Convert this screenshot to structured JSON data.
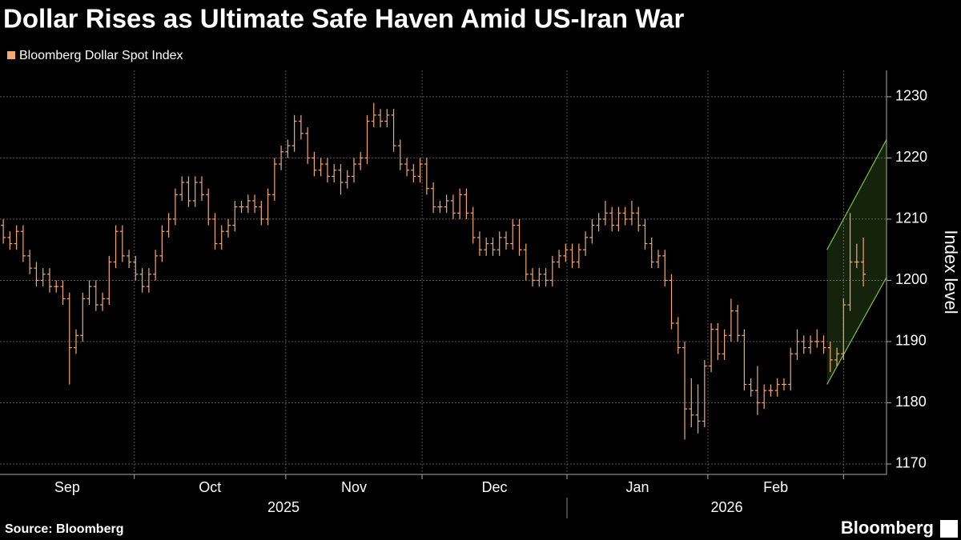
{
  "chart_data": {
    "type": "ohlc",
    "title": "Dollar Rises as Ultimate Safe Haven Amid US-Iran War",
    "y_label": "Index level",
    "series": [
      {
        "name": "Bloomberg Dollar Spot Index",
        "color": "#f4a96f",
        "open": [
          1209,
          1207,
          1206,
          1208,
          1204,
          1202,
          1200,
          1201,
          1199,
          1199,
          1197,
          1189,
          1191,
          1197,
          1199,
          1196,
          1197,
          1203,
          1208,
          1204,
          1203,
          1201,
          1199,
          1201,
          1204,
          1208,
          1210,
          1214,
          1216,
          1213,
          1216,
          1214,
          1210,
          1206,
          1208,
          1209,
          1212,
          1212,
          1213,
          1212,
          1210,
          1214,
          1219,
          1221,
          1222,
          1226,
          1224,
          1220,
          1218,
          1219,
          1217,
          1218,
          1216,
          1217,
          1219,
          1220,
          1226,
          1227,
          1226,
          1227,
          1222,
          1219,
          1218,
          1217,
          1219,
          1215,
          1212,
          1212,
          1213,
          1211,
          1214,
          1211,
          1207,
          1205,
          1206,
          1205,
          1207,
          1206,
          1209,
          1205,
          1201,
          1200,
          1201,
          1200,
          1203,
          1204,
          1205,
          1203,
          1205,
          1207,
          1209,
          1210,
          1211,
          1209,
          1211,
          1210,
          1211,
          1209,
          1206,
          1203,
          1204,
          1200,
          1193,
          1189,
          1179,
          1178,
          1177,
          1186,
          1192,
          1188,
          1191,
          1195,
          1191,
          1183,
          1182,
          1180,
          1182,
          1182,
          1183,
          1183,
          1188,
          1190,
          1189,
          1190,
          1190,
          1189,
          1187,
          1188,
          1196,
          1203,
          1203
        ],
        "high": [
          1210,
          1208,
          1209,
          1209,
          1205,
          1203,
          1202,
          1202,
          1200,
          1200,
          1198,
          1192,
          1198,
          1200,
          1200,
          1198,
          1204,
          1209,
          1209,
          1205,
          1204,
          1202,
          1202,
          1205,
          1209,
          1211,
          1215,
          1217,
          1217,
          1217,
          1217,
          1215,
          1211,
          1209,
          1210,
          1213,
          1213,
          1214,
          1214,
          1213,
          1215,
          1220,
          1222,
          1223,
          1227,
          1227,
          1225,
          1221,
          1220,
          1220,
          1219,
          1219,
          1218,
          1220,
          1221,
          1227,
          1229,
          1228,
          1228,
          1228,
          1223,
          1220,
          1219,
          1220,
          1220,
          1216,
          1213,
          1214,
          1214,
          1215,
          1215,
          1212,
          1208,
          1207,
          1207,
          1208,
          1208,
          1210,
          1210,
          1206,
          1202,
          1202,
          1202,
          1204,
          1205,
          1206,
          1206,
          1206,
          1208,
          1210,
          1211,
          1213,
          1212,
          1212,
          1212,
          1213,
          1212,
          1210,
          1207,
          1205,
          1205,
          1201,
          1194,
          1190,
          1184,
          1183,
          1187,
          1193,
          1193,
          1192,
          1197,
          1196,
          1192,
          1184,
          1186,
          1183,
          1183,
          1184,
          1184,
          1189,
          1192,
          1191,
          1191,
          1192,
          1191,
          1190,
          1189,
          1197,
          1211,
          1206,
          1207
        ],
        "low": [
          1206,
          1205,
          1205,
          1203,
          1201,
          1199,
          1199,
          1198,
          1198,
          1196,
          1183,
          1188,
          1190,
          1196,
          1195,
          1195,
          1196,
          1202,
          1203,
          1202,
          1200,
          1198,
          1198,
          1200,
          1203,
          1207,
          1209,
          1213,
          1212,
          1212,
          1213,
          1209,
          1205,
          1205,
          1207,
          1208,
          1211,
          1211,
          1211,
          1209,
          1209,
          1213,
          1218,
          1220,
          1221,
          1223,
          1219,
          1217,
          1217,
          1216,
          1216,
          1214,
          1215,
          1216,
          1218,
          1219,
          1225,
          1225,
          1225,
          1221,
          1218,
          1217,
          1216,
          1216,
          1214,
          1211,
          1211,
          1211,
          1210,
          1210,
          1210,
          1206,
          1204,
          1204,
          1204,
          1204,
          1205,
          1205,
          1204,
          1200,
          1199,
          1199,
          1199,
          1199,
          1202,
          1203,
          1202,
          1202,
          1204,
          1206,
          1208,
          1209,
          1208,
          1208,
          1209,
          1209,
          1208,
          1205,
          1202,
          1202,
          1199,
          1192,
          1188,
          1174,
          1176,
          1175,
          1176,
          1185,
          1187,
          1187,
          1190,
          1190,
          1182,
          1181,
          1178,
          1179,
          1181,
          1181,
          1182,
          1182,
          1187,
          1188,
          1188,
          1189,
          1188,
          1185,
          1186,
          1187,
          1195,
          1202,
          1199
        ],
        "close": [
          1207,
          1206,
          1208,
          1204,
          1202,
          1200,
          1201,
          1199,
          1199,
          1197,
          1189,
          1191,
          1197,
          1199,
          1196,
          1197,
          1203,
          1208,
          1204,
          1203,
          1201,
          1199,
          1201,
          1204,
          1208,
          1210,
          1214,
          1216,
          1213,
          1216,
          1214,
          1210,
          1206,
          1208,
          1209,
          1212,
          1212,
          1213,
          1212,
          1210,
          1214,
          1219,
          1221,
          1222,
          1226,
          1224,
          1220,
          1218,
          1219,
          1217,
          1218,
          1216,
          1217,
          1219,
          1220,
          1226,
          1227,
          1226,
          1227,
          1222,
          1219,
          1218,
          1217,
          1219,
          1215,
          1212,
          1212,
          1213,
          1211,
          1214,
          1211,
          1207,
          1205,
          1206,
          1205,
          1207,
          1206,
          1209,
          1205,
          1201,
          1200,
          1201,
          1200,
          1203,
          1204,
          1205,
          1203,
          1205,
          1207,
          1209,
          1210,
          1211,
          1209,
          1211,
          1210,
          1211,
          1209,
          1206,
          1203,
          1204,
          1200,
          1193,
          1189,
          1179,
          1178,
          1177,
          1186,
          1192,
          1188,
          1191,
          1195,
          1191,
          1183,
          1182,
          1180,
          1182,
          1182,
          1183,
          1183,
          1188,
          1190,
          1189,
          1190,
          1190,
          1189,
          1187,
          1188,
          1196,
          1203,
          1203,
          1201
        ]
      }
    ],
    "ylim": [
      1168.3,
      1234.3
    ],
    "yticks": [
      1170,
      1180,
      1190,
      1200,
      1210,
      1220,
      1230
    ],
    "grid": true,
    "xlim": [
      0,
      134
    ],
    "xticks": [
      20.3,
      43.2,
      63.8,
      85.7,
      107,
      127.5
    ],
    "month_labels": [
      "Sep",
      "Oct",
      "Nov",
      "Dec",
      "Jan",
      "Feb"
    ],
    "year_labels": [
      "2025",
      "2026"
    ],
    "year_break": 85.7,
    "channel": {
      "x": [
        125,
        134
      ],
      "upper": [
        1205,
        1223
      ],
      "lower": [
        1183,
        1200.5
      ],
      "color": "#7bc043"
    }
  },
  "source": "Source: Bloomberg",
  "brand": "Bloomberg"
}
